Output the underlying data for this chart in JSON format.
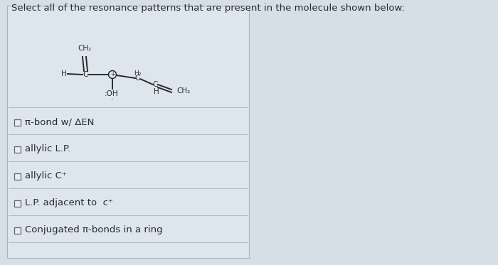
{
  "title": "Select all of the resonance patterns that are present in the molecule shown below:",
  "title_fontsize": 9.5,
  "bg_left_color": "#d6dfe8",
  "bg_right_color": "#c5cedb",
  "panel_left_color": "#dde5ed",
  "text_color": "#2a2a2a",
  "molecule_color": "#2a2a2a",
  "options": [
    "π-bond w/ ΔEN",
    "allylic L.P.",
    "allylic C⁺",
    "L.P. adjacent to  c⁺",
    "Conjugated π-bonds in a ring"
  ],
  "checkbox_size": 9,
  "checkbox_edge": "#666666",
  "checkbox_face": "#e8edf2",
  "separator_color": "#aab4be",
  "separator_lw": 0.6,
  "mol_lw": 1.4,
  "mol_fontsize": 7.5,
  "mol_small_fontsize": 6.5
}
